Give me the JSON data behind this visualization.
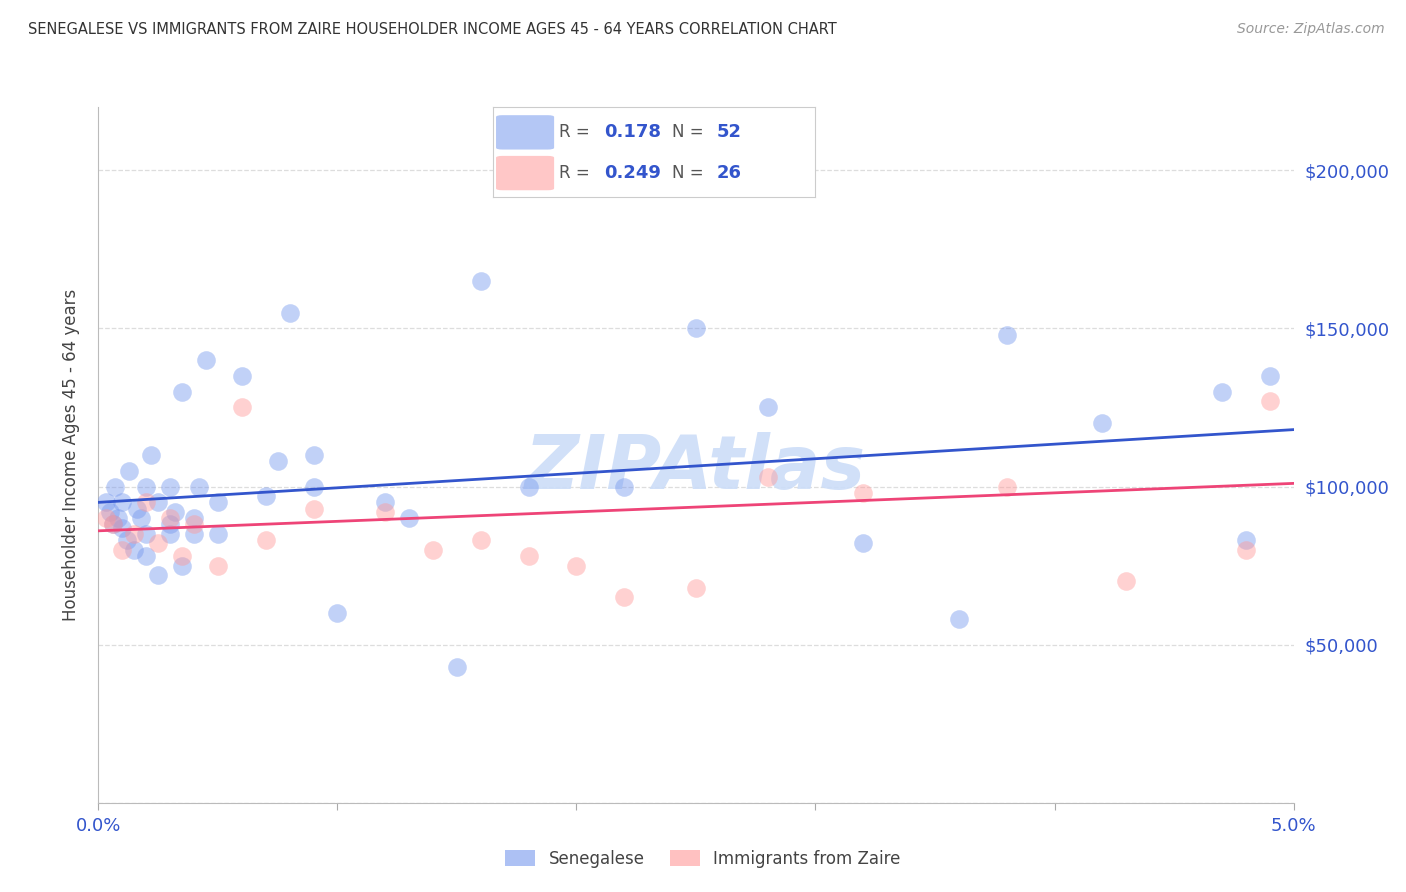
{
  "title": "SENEGALESE VS IMMIGRANTS FROM ZAIRE HOUSEHOLDER INCOME AGES 45 - 64 YEARS CORRELATION CHART",
  "source": "Source: ZipAtlas.com",
  "ylabel": "Householder Income Ages 45 - 64 years",
  "xlim": [
    0.0,
    0.05
  ],
  "ylim": [
    0,
    220000
  ],
  "blue_color": "#7799EE",
  "pink_color": "#FF9999",
  "line_blue": "#3355CC",
  "line_pink": "#EE4477",
  "watermark": "ZIPAtlas",
  "watermark_color": "#CCDDF8",
  "axis_label_color": "#3355CC",
  "tick_label_color": "#444444",
  "grid_color": "#DDDDDD",
  "background_color": "#FFFFFF",
  "title_color": "#333333",
  "source_color": "#999999",
  "legend_R1_val": "0.178",
  "legend_N1_val": "52",
  "legend_R2_val": "0.249",
  "legend_N2_val": "26",
  "blue_line_x": [
    0.0,
    0.05
  ],
  "blue_line_y": [
    95000,
    118000
  ],
  "pink_line_x": [
    0.0,
    0.05
  ],
  "pink_line_y": [
    86000,
    101000
  ],
  "senegalese_x": [
    0.0003,
    0.0005,
    0.0006,
    0.0007,
    0.0008,
    0.001,
    0.001,
    0.0012,
    0.0013,
    0.0015,
    0.0016,
    0.0018,
    0.002,
    0.002,
    0.002,
    0.0022,
    0.0025,
    0.0025,
    0.003,
    0.003,
    0.003,
    0.0032,
    0.0035,
    0.0035,
    0.004,
    0.004,
    0.0042,
    0.0045,
    0.005,
    0.005,
    0.006,
    0.007,
    0.0075,
    0.008,
    0.009,
    0.009,
    0.01,
    0.012,
    0.013,
    0.015,
    0.016,
    0.018,
    0.022,
    0.025,
    0.028,
    0.032,
    0.036,
    0.038,
    0.042,
    0.047,
    0.048,
    0.049
  ],
  "senegalese_y": [
    95000,
    92000,
    88000,
    100000,
    90000,
    95000,
    87000,
    83000,
    105000,
    80000,
    93000,
    90000,
    100000,
    85000,
    78000,
    110000,
    95000,
    72000,
    88000,
    100000,
    85000,
    92000,
    130000,
    75000,
    90000,
    85000,
    100000,
    140000,
    95000,
    85000,
    135000,
    97000,
    108000,
    155000,
    100000,
    110000,
    60000,
    95000,
    90000,
    43000,
    165000,
    100000,
    100000,
    150000,
    125000,
    82000,
    58000,
    148000,
    120000,
    130000,
    83000,
    135000
  ],
  "zaire_x": [
    0.0003,
    0.0006,
    0.001,
    0.0015,
    0.002,
    0.0025,
    0.003,
    0.0035,
    0.004,
    0.005,
    0.006,
    0.007,
    0.009,
    0.012,
    0.014,
    0.016,
    0.018,
    0.02,
    0.022,
    0.025,
    0.028,
    0.032,
    0.038,
    0.043,
    0.048,
    0.049
  ],
  "zaire_y": [
    90000,
    88000,
    80000,
    85000,
    95000,
    82000,
    90000,
    78000,
    88000,
    75000,
    125000,
    83000,
    93000,
    92000,
    80000,
    83000,
    78000,
    75000,
    65000,
    68000,
    103000,
    98000,
    100000,
    70000,
    80000,
    127000
  ]
}
